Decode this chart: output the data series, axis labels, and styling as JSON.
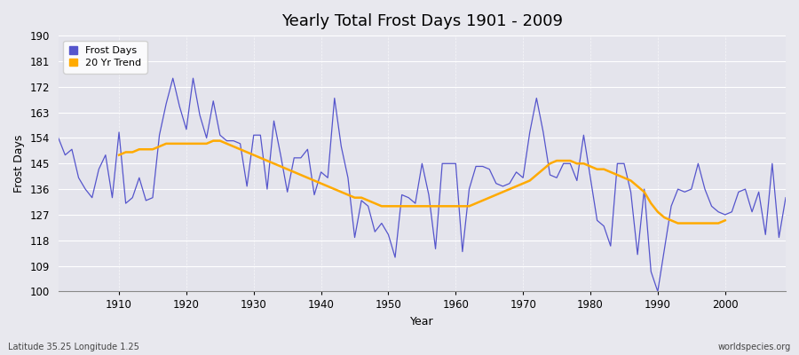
{
  "title": "Yearly Total Frost Days 1901 - 2009",
  "xlabel": "Year",
  "ylabel": "Frost Days",
  "subtitle": "Latitude 35.25 Longitude 1.25",
  "watermark": "worldspecies.org",
  "bg_color": "#e8e8ee",
  "plot_bg_color": "#e4e4ec",
  "frost_color": "#5555cc",
  "trend_color": "#ffaa00",
  "ylim": [
    100,
    190
  ],
  "yticks": [
    100,
    109,
    118,
    127,
    136,
    145,
    154,
    163,
    172,
    181,
    190
  ],
  "xlim_left": 1901,
  "xlim_right": 2009,
  "years": [
    1901,
    1902,
    1903,
    1904,
    1905,
    1906,
    1907,
    1908,
    1909,
    1910,
    1911,
    1912,
    1913,
    1914,
    1915,
    1916,
    1917,
    1918,
    1919,
    1920,
    1921,
    1922,
    1923,
    1924,
    1925,
    1926,
    1927,
    1928,
    1929,
    1930,
    1931,
    1932,
    1933,
    1934,
    1935,
    1936,
    1937,
    1938,
    1939,
    1940,
    1941,
    1942,
    1943,
    1944,
    1945,
    1946,
    1947,
    1948,
    1949,
    1950,
    1951,
    1952,
    1953,
    1954,
    1955,
    1956,
    1957,
    1958,
    1959,
    1960,
    1961,
    1962,
    1963,
    1964,
    1965,
    1966,
    1967,
    1968,
    1969,
    1970,
    1971,
    1972,
    1973,
    1974,
    1975,
    1976,
    1977,
    1978,
    1979,
    1980,
    1981,
    1982,
    1983,
    1984,
    1985,
    1986,
    1987,
    1988,
    1989,
    1990,
    1991,
    1992,
    1993,
    1994,
    1995,
    1996,
    1997,
    1998,
    1999,
    2000,
    2001,
    2002,
    2003,
    2004,
    2005,
    2006,
    2007,
    2008,
    2009
  ],
  "frost_days": [
    154,
    148,
    150,
    140,
    136,
    133,
    143,
    148,
    133,
    156,
    131,
    133,
    140,
    132,
    133,
    155,
    166,
    175,
    165,
    157,
    175,
    162,
    154,
    167,
    155,
    153,
    153,
    152,
    137,
    155,
    155,
    136,
    160,
    148,
    135,
    147,
    147,
    150,
    134,
    142,
    140,
    168,
    151,
    140,
    119,
    132,
    130,
    121,
    124,
    120,
    112,
    134,
    133,
    131,
    145,
    134,
    115,
    145,
    145,
    145,
    114,
    136,
    144,
    144,
    143,
    138,
    137,
    138,
    142,
    140,
    156,
    168,
    156,
    141,
    140,
    145,
    145,
    139,
    155,
    140,
    125,
    123,
    116,
    145,
    145,
    135,
    113,
    136,
    107,
    100,
    115,
    130,
    136,
    135,
    136,
    145,
    136,
    130,
    128,
    127,
    128,
    135,
    136,
    128,
    135,
    120,
    145,
    119,
    133
  ],
  "trend_years": [
    1910,
    1911,
    1912,
    1913,
    1914,
    1915,
    1916,
    1917,
    1918,
    1919,
    1920,
    1921,
    1922,
    1923,
    1924,
    1925,
    1926,
    1927,
    1928,
    1929,
    1930,
    1931,
    1932,
    1933,
    1934,
    1935,
    1936,
    1937,
    1938,
    1939,
    1940,
    1941,
    1942,
    1943,
    1944,
    1945,
    1946,
    1947,
    1948,
    1949,
    1950,
    1951,
    1952,
    1953,
    1954,
    1955,
    1956,
    1957,
    1958,
    1959,
    1960,
    1961,
    1962,
    1963,
    1964,
    1965,
    1966,
    1967,
    1968,
    1969,
    1970,
    1971,
    1972,
    1973,
    1974,
    1975,
    1976,
    1977,
    1978,
    1979,
    1980,
    1981,
    1982,
    1983,
    1984,
    1985,
    1986,
    1987,
    1988,
    1989,
    1990,
    1991,
    1992,
    1993,
    1994,
    1995,
    1996,
    1997,
    1998,
    1999,
    2000
  ],
  "trend_values": [
    148,
    149,
    149,
    150,
    150,
    150,
    151,
    152,
    152,
    152,
    152,
    152,
    152,
    152,
    153,
    153,
    152,
    151,
    150,
    149,
    148,
    147,
    146,
    145,
    144,
    143,
    142,
    141,
    140,
    139,
    138,
    137,
    136,
    135,
    134,
    133,
    133,
    132,
    131,
    130,
    130,
    130,
    130,
    130,
    130,
    130,
    130,
    130,
    130,
    130,
    130,
    130,
    130,
    131,
    132,
    133,
    134,
    135,
    136,
    137,
    138,
    139,
    141,
    143,
    145,
    146,
    146,
    146,
    145,
    145,
    144,
    143,
    143,
    142,
    141,
    140,
    139,
    137,
    135,
    131,
    128,
    126,
    125,
    124,
    124,
    124,
    124,
    124,
    124,
    124,
    125
  ]
}
